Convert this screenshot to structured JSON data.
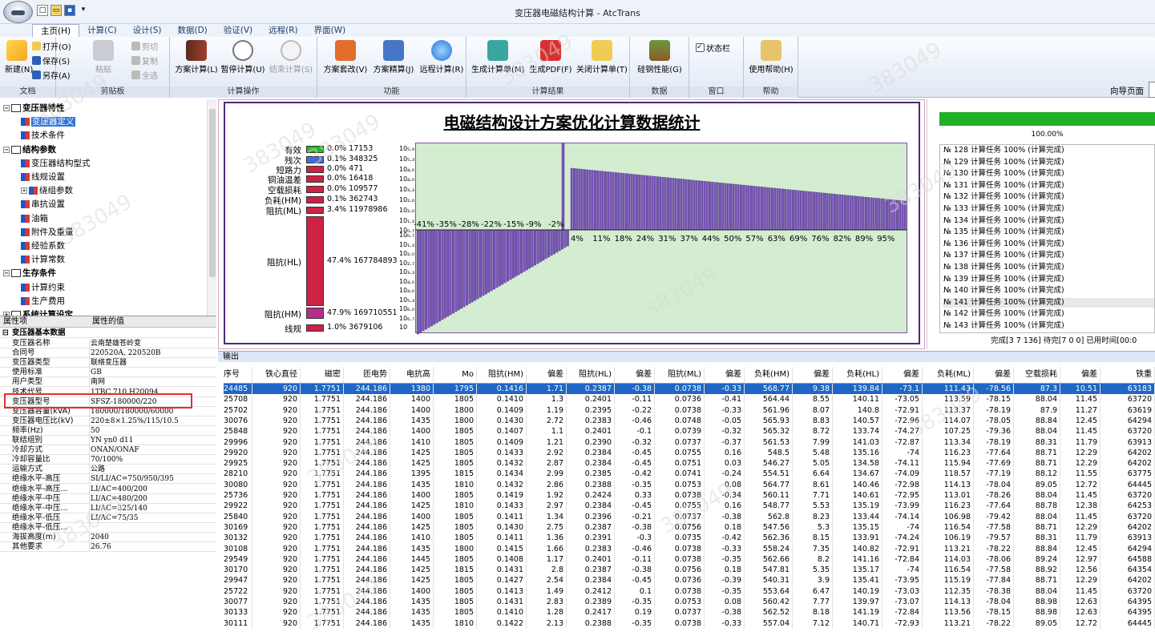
{
  "window": {
    "title": "变压器电磁结构计算 - AtcTrans"
  },
  "ribbon_tabs": [
    "主页(H)",
    "计算(C)",
    "设计(S)",
    "数据(D)",
    "验证(V)",
    "远程(R)",
    "界面(W)"
  ],
  "ribbon": {
    "groups": [
      "文档",
      "剪贴板",
      "计算操作",
      "功能",
      "计算结果",
      "数据",
      "窗口",
      "帮助"
    ],
    "new": "新建(N)",
    "open": "打开(O)",
    "save": "保存(S)",
    "saveas": "另存(A)",
    "paste": "粘贴",
    "cut": "剪切",
    "copy": "复制",
    "selectall": "全选",
    "calc_scheme": "方案计算(L)",
    "pause": "暂停计算(U)",
    "end": "结束计算(S)",
    "modify": "方案套改(V)",
    "refine": "方案精算(J)",
    "remote": "远程计算(R)",
    "gen_sheet": "生成计算单(M)",
    "gen_pdf": "生成PDF(F)",
    "close_sheet": "关闭计算单(T)",
    "silicon": "硅钢性能(G)",
    "statusbar": "状态栏",
    "help": "使用帮助(H)",
    "nav": "向导页面"
  },
  "tree": [
    {
      "label": "变压器特性",
      "level": 0,
      "bold": true,
      "box": "⊟"
    },
    {
      "label": "变压器定义",
      "level": 1,
      "selected": true
    },
    {
      "label": "技术条件",
      "level": 1
    },
    {
      "label": "结构参数",
      "level": 0,
      "bold": true,
      "box": "⊟"
    },
    {
      "label": "变压器结构型式",
      "level": 1
    },
    {
      "label": "线规设置",
      "level": 1
    },
    {
      "label": "绕组参数",
      "level": 1,
      "box": "⊞"
    },
    {
      "label": "串抗设置",
      "level": 1
    },
    {
      "label": "油箱",
      "level": 1
    },
    {
      "label": "附件及重量",
      "level": 1
    },
    {
      "label": "经验系数",
      "level": 1
    },
    {
      "label": "计算常数",
      "level": 1
    },
    {
      "label": "生存条件",
      "level": 0,
      "bold": true,
      "box": "⊟"
    },
    {
      "label": "计算约束",
      "level": 1
    },
    {
      "label": "生产费用",
      "level": 1
    },
    {
      "label": "系统计算设定",
      "level": 0,
      "bold": true,
      "box": "⊞"
    }
  ],
  "props": {
    "col1": "属性项",
    "col2": "属性的值",
    "section": "变压器基本数据",
    "rows": [
      [
        "变压器名称",
        "云南楚雄苍岭变"
      ],
      [
        "合同号",
        "220520A, 220520B"
      ],
      [
        "变压器类型",
        "联络变压器"
      ],
      [
        "使用标准",
        "GB"
      ],
      [
        "用户类型",
        "南网"
      ],
      [
        "技术代号",
        "1TBC.710.H20094"
      ],
      [
        "变压器型号",
        "SFSZ-180000/220"
      ],
      [
        "变压器容量(kVA)",
        "180000/180000/60000"
      ],
      [
        "变压器电压比(kV)",
        "220±8×1.25%/115/10.5"
      ],
      [
        "频率(Hz)",
        "50"
      ],
      [
        "联结组别",
        "YN yn0 d11"
      ],
      [
        "冷却方式",
        "ONAN/ONAF"
      ],
      [
        "冷却容量比",
        "70/100%"
      ],
      [
        "运输方式",
        "公路"
      ],
      [
        "绝缘水平-高压",
        "SI/LI/AC=750/950/395"
      ],
      [
        "绝缘水平-高压...",
        "LI/AC=400/200"
      ],
      [
        "绝缘水平-中压",
        "LI/AC=480/200"
      ],
      [
        "绝缘水平-中压...",
        "LI/AC=325/140"
      ],
      [
        "绝缘水平-低压",
        "LI/AC=75/35"
      ],
      [
        "绝缘水平-低压...",
        ""
      ],
      [
        "海拔高度(m)",
        "2040"
      ],
      [
        "其他要求",
        "26.76"
      ]
    ]
  },
  "chart_data": {
    "type": "bar",
    "title": "电磁结构设计方案优化计算数据统计",
    "legend": [
      {
        "name": "有效",
        "value": "0.0% 17153",
        "color": "#22bb22"
      },
      {
        "name": "残次",
        "value": "0.1% 348325",
        "color": "#3f6fd8"
      },
      {
        "name": "短路力",
        "value": "0.0% 471",
        "color": "#cc2244"
      },
      {
        "name": "铜油温差",
        "value": "0.0% 16418",
        "color": "#cc2244"
      },
      {
        "name": "空载损耗",
        "value": "0.0% 109577",
        "color": "#cc2244"
      },
      {
        "name": "负耗(HM)",
        "value": "0.1% 362743",
        "color": "#cc2244"
      },
      {
        "name": "阻抗(ML)",
        "value": "3.4% 11978986",
        "color": "#cc2244"
      },
      {
        "name": "阻抗(HL)",
        "value": "47.4% 167784893",
        "color": "#cc2244"
      },
      {
        "name": "阻抗(HM)",
        "value": "47.9% 169710551",
        "color": "#b0308a"
      },
      {
        "name": "线规",
        "value": "1.0% 3679106",
        "color": "#cc2244"
      }
    ],
    "y_ticks_pos": [
      "10₅.₉",
      "10₅.₃",
      "10₄.₆",
      "10₄.₀",
      "10₃.₃",
      "10₂.₆",
      "10₂.₀",
      "10₁.₃",
      "10₀.₇"
    ],
    "y_ticks_neg": [
      "10₀.₇",
      "10₁.₃",
      "10₂.₀",
      "10₂.₇",
      "10₃.₃",
      "10₄.₀",
      "10₄.₆",
      "10₅.₃",
      "10₆.₀",
      "10₆.₇",
      "10"
    ],
    "neg_labels": [
      "-41%",
      "-35%",
      "-28%",
      "-22%",
      "-15%",
      "-9%",
      "-2%"
    ],
    "pos_labels": [
      "4%",
      "11%",
      "18%",
      "24%",
      "31%",
      "37%",
      "44%",
      "50%",
      "57%",
      "63%",
      "69%",
      "76%",
      "82%",
      "89%",
      "95%"
    ],
    "neg_bar_count": 56,
    "pos_bar_count": 130
  },
  "progress": {
    "percent": "100.00%",
    "tasks": [
      "№ 128 计算任务 100% (计算完成)",
      "№ 129 计算任务 100% (计算完成)",
      "№ 130 计算任务 100% (计算完成)",
      "№ 131 计算任务 100% (计算完成)",
      "№ 132 计算任务 100% (计算完成)",
      "№ 133 计算任务 100% (计算完成)",
      "№ 134 计算任务 100% (计算完成)",
      "№ 135 计算任务 100% (计算完成)",
      "№ 136 计算任务 100% (计算完成)",
      "№ 137 计算任务 100% (计算完成)",
      "№ 138 计算任务 100% (计算完成)",
      "№ 139 计算任务 100% (计算完成)",
      "№ 140 计算任务 100% (计算完成)",
      "№ 141 计算任务 100% (计算完成)",
      "№ 142 计算任务 100% (计算完成)",
      "№ 143 计算任务 100% (计算完成)"
    ],
    "status": "完成[3 7 136] 待完[7 0 0] 已用时间[00:0"
  },
  "output": {
    "title": "输出",
    "headers": [
      "序号",
      "铁心直径",
      "磁密",
      "匝电势",
      "电抗高",
      "Mo",
      "阻抗(HM)",
      "偏差",
      "阻抗(HL)",
      "偏差",
      "阻抗(ML)",
      "偏差",
      "负耗(HM)",
      "偏差",
      "负耗(HL)",
      "偏差",
      "负耗(ML)",
      "偏差",
      "空载损耗",
      "偏差",
      "铁重"
    ],
    "rows": [
      [
        "24485",
        "920",
        "1.7751",
        "244.186",
        "1380",
        "1795",
        "0.1416",
        "1.71",
        "0.2387",
        "-0.38",
        "0.0738",
        "-0.33",
        "568.77",
        "9.38",
        "139.84",
        "-73.1",
        "111.43",
        "-78.56",
        "87.3",
        "10.51",
        "63183"
      ],
      [
        "25708",
        "920",
        "1.7751",
        "244.186",
        "1400",
        "1805",
        "0.1410",
        "1.3",
        "0.2401",
        "-0.11",
        "0.0736",
        "-0.41",
        "564.44",
        "8.55",
        "140.11",
        "-73.05",
        "113.59",
        "-78.15",
        "88.04",
        "11.45",
        "63720"
      ],
      [
        "25702",
        "920",
        "1.7751",
        "244.186",
        "1400",
        "1800",
        "0.1409",
        "1.19",
        "0.2395",
        "-0.22",
        "0.0738",
        "-0.33",
        "561.96",
        "8.07",
        "140.8",
        "-72.91",
        "113.37",
        "-78.19",
        "87.9",
        "11.27",
        "63619"
      ],
      [
        "30076",
        "920",
        "1.7751",
        "244.186",
        "1435",
        "1800",
        "0.1430",
        "2.72",
        "0.2383",
        "-0.46",
        "0.0748",
        "-0.05",
        "565.93",
        "8.83",
        "140.57",
        "-72.96",
        "114.07",
        "-78.05",
        "88.84",
        "12.45",
        "64294"
      ],
      [
        "25848",
        "920",
        "1.7751",
        "244.186",
        "1400",
        "1805",
        "0.1407",
        "1.1",
        "0.2401",
        "-0.1",
        "0.0739",
        "-0.32",
        "565.32",
        "8.72",
        "133.74",
        "-74.27",
        "107.25",
        "-79.36",
        "88.04",
        "11.45",
        "63720"
      ],
      [
        "29996",
        "920",
        "1.7751",
        "244.186",
        "1410",
        "1805",
        "0.1409",
        "1.21",
        "0.2390",
        "-0.32",
        "0.0737",
        "-0.37",
        "561.53",
        "7.99",
        "141.03",
        "-72.87",
        "113.34",
        "-78.19",
        "88.31",
        "11.79",
        "63913"
      ],
      [
        "29920",
        "920",
        "1.7751",
        "244.186",
        "1425",
        "1805",
        "0.1433",
        "2.92",
        "0.2384",
        "-0.45",
        "0.0755",
        "0.16",
        "548.5",
        "5.48",
        "135.16",
        "-74",
        "116.23",
        "-77.64",
        "88.71",
        "12.29",
        "64202"
      ],
      [
        "29925",
        "920",
        "1.7751",
        "244.186",
        "1425",
        "1805",
        "0.1432",
        "2.87",
        "0.2384",
        "-0.45",
        "0.0751",
        "0.03",
        "546.27",
        "5.05",
        "134.58",
        "-74.11",
        "115.94",
        "-77.69",
        "88.71",
        "12.29",
        "64202"
      ],
      [
        "28210",
        "920",
        "1.7751",
        "244.186",
        "1395",
        "1815",
        "0.1434",
        "2.99",
        "0.2385",
        "-0.42",
        "0.0741",
        "-0.24",
        "554.51",
        "6.64",
        "134.67",
        "-74.09",
        "118.57",
        "-77.19",
        "88.12",
        "11.55",
        "63775"
      ],
      [
        "30080",
        "920",
        "1.7751",
        "244.186",
        "1435",
        "1810",
        "0.1432",
        "2.86",
        "0.2388",
        "-0.35",
        "0.0753",
        "0.08",
        "564.77",
        "8.61",
        "140.46",
        "-72.98",
        "114.13",
        "-78.04",
        "89.05",
        "12.72",
        "64445"
      ],
      [
        "25736",
        "920",
        "1.7751",
        "244.186",
        "1400",
        "1805",
        "0.1419",
        "1.92",
        "0.2424",
        "0.33",
        "0.0738",
        "-0.34",
        "560.11",
        "7.71",
        "140.61",
        "-72.95",
        "113.01",
        "-78.26",
        "88.04",
        "11.45",
        "63720"
      ],
      [
        "29922",
        "920",
        "1.7751",
        "244.186",
        "1425",
        "1810",
        "0.1433",
        "2.97",
        "0.2384",
        "-0.45",
        "0.0755",
        "0.16",
        "548.77",
        "5.53",
        "135.19",
        "-73.99",
        "116.23",
        "-77.64",
        "88.78",
        "12.38",
        "64253"
      ],
      [
        "25840",
        "920",
        "1.7751",
        "244.186",
        "1400",
        "1805",
        "0.1411",
        "1.34",
        "0.2396",
        "-0.21",
        "0.0737",
        "-0.38",
        "562.8",
        "8.23",
        "133.44",
        "-74.14",
        "106.98",
        "-79.42",
        "88.04",
        "11.45",
        "63720"
      ],
      [
        "30169",
        "920",
        "1.7751",
        "244.186",
        "1425",
        "1805",
        "0.1430",
        "2.75",
        "0.2387",
        "-0.38",
        "0.0756",
        "0.18",
        "547.56",
        "5.3",
        "135.15",
        "-74",
        "116.54",
        "-77.58",
        "88.71",
        "12.29",
        "64202"
      ],
      [
        "30132",
        "920",
        "1.7751",
        "244.186",
        "1410",
        "1805",
        "0.1411",
        "1.36",
        "0.2391",
        "-0.3",
        "0.0735",
        "-0.42",
        "562.36",
        "8.15",
        "133.91",
        "-74.24",
        "106.19",
        "-79.57",
        "88.31",
        "11.79",
        "63913"
      ],
      [
        "30108",
        "920",
        "1.7751",
        "244.186",
        "1435",
        "1800",
        "0.1415",
        "1.66",
        "0.2383",
        "-0.46",
        "0.0738",
        "-0.33",
        "558.24",
        "7.35",
        "140.82",
        "-72.91",
        "113.21",
        "-78.22",
        "88.84",
        "12.45",
        "64294"
      ],
      [
        "29549",
        "920",
        "1.7751",
        "244.186",
        "1445",
        "1805",
        "0.1408",
        "1.17",
        "0.2401",
        "-0.11",
        "0.0738",
        "-0.35",
        "562.66",
        "8.2",
        "141.16",
        "-72.84",
        "114.03",
        "-78.06",
        "89.24",
        "12.97",
        "64588"
      ],
      [
        "30170",
        "920",
        "1.7751",
        "244.186",
        "1425",
        "1815",
        "0.1431",
        "2.8",
        "0.2387",
        "-0.38",
        "0.0756",
        "0.18",
        "547.81",
        "5.35",
        "135.17",
        "-74",
        "116.54",
        "-77.58",
        "88.92",
        "12.56",
        "64354"
      ],
      [
        "29947",
        "920",
        "1.7751",
        "244.186",
        "1425",
        "1805",
        "0.1427",
        "2.54",
        "0.2384",
        "-0.45",
        "0.0736",
        "-0.39",
        "540.31",
        "3.9",
        "135.41",
        "-73.95",
        "115.19",
        "-77.84",
        "88.71",
        "12.29",
        "64202"
      ],
      [
        "25722",
        "920",
        "1.7751",
        "244.186",
        "1400",
        "1805",
        "0.1413",
        "1.49",
        "0.2412",
        "0.1",
        "0.0738",
        "-0.35",
        "553.64",
        "6.47",
        "140.19",
        "-73.03",
        "112.35",
        "-78.38",
        "88.04",
        "11.45",
        "63720"
      ],
      [
        "30077",
        "920",
        "1.7751",
        "244.186",
        "1435",
        "1805",
        "0.1431",
        "2.83",
        "0.2389",
        "-0.35",
        "0.0753",
        "0.08",
        "560.42",
        "7.77",
        "139.97",
        "-73.07",
        "114.13",
        "-78.04",
        "88.98",
        "12.63",
        "64395"
      ],
      [
        "30133",
        "920",
        "1.7751",
        "244.186",
        "1435",
        "1805",
        "0.1410",
        "1.28",
        "0.2417",
        "0.19",
        "0.0737",
        "-0.38",
        "562.52",
        "8.18",
        "141.19",
        "-72.84",
        "113.56",
        "-78.15",
        "88.98",
        "12.63",
        "64395"
      ],
      [
        "30111",
        "920",
        "1.7751",
        "244.186",
        "1435",
        "1810",
        "0.1422",
        "2.13",
        "0.2388",
        "-0.35",
        "0.0738",
        "-0.33",
        "557.04",
        "7.12",
        "140.71",
        "-72.93",
        "113.21",
        "-78.22",
        "89.05",
        "12.72",
        "64445"
      ]
    ]
  },
  "watermark": "383049"
}
